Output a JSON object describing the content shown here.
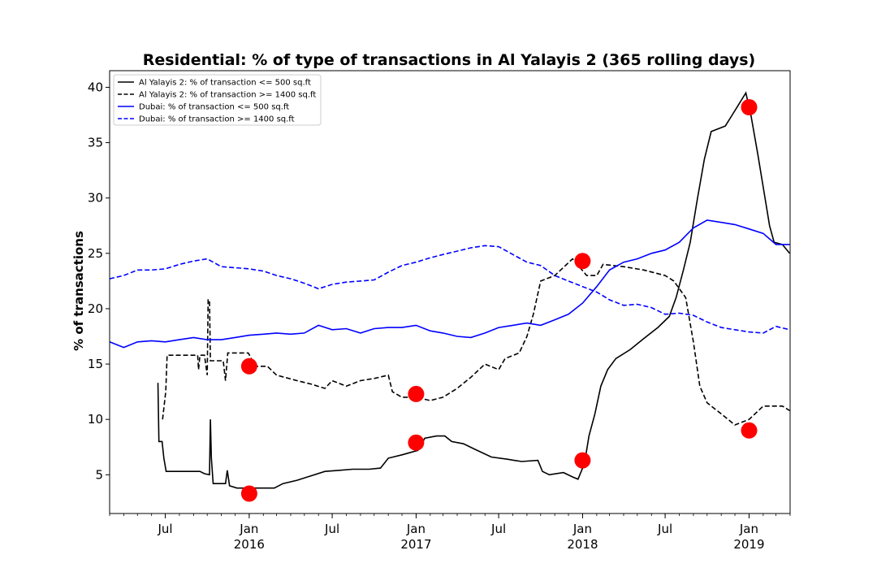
{
  "chart_data": {
    "type": "line",
    "title": "Residential: % of type of transactions in Al Yalayis 2 (365 rolling days)",
    "ylabel": "% of transactions",
    "xlabel": "",
    "xlim": [
      "2015-03-01",
      "2019-04-01"
    ],
    "ylim": [
      1.5,
      41.5
    ],
    "yticks": [
      5,
      10,
      15,
      20,
      25,
      30,
      35,
      40
    ],
    "xticks": [
      {
        "date": "2015-07-01",
        "label": "Jul",
        "year": ""
      },
      {
        "date": "2016-01-01",
        "label": "Jan",
        "year": "2016"
      },
      {
        "date": "2016-07-01",
        "label": "Jul",
        "year": ""
      },
      {
        "date": "2017-01-01",
        "label": "Jan",
        "year": "2017"
      },
      {
        "date": "2017-07-01",
        "label": "Jul",
        "year": ""
      },
      {
        "date": "2018-01-01",
        "label": "Jan",
        "year": "2018"
      },
      {
        "date": "2018-07-01",
        "label": "Jul",
        "year": ""
      },
      {
        "date": "2019-01-01",
        "label": "Jan",
        "year": "2019"
      }
    ],
    "grid": false,
    "legend_position": "top-left",
    "series": [
      {
        "name": "Al Yalayis 2: % of transaction <= 500 sq.ft",
        "color": "#000000",
        "style": "solid",
        "points": [
          [
            "2015-06-15",
            13.3
          ],
          [
            "2015-06-17",
            8.0
          ],
          [
            "2015-06-24",
            8.0
          ],
          [
            "2015-06-28",
            6.5
          ],
          [
            "2015-07-03",
            5.3
          ],
          [
            "2015-09-15",
            5.3
          ],
          [
            "2015-09-25",
            5.1
          ],
          [
            "2015-10-06",
            5.0
          ],
          [
            "2015-10-08",
            10.0
          ],
          [
            "2015-10-10",
            6.5
          ],
          [
            "2015-10-14",
            4.2
          ],
          [
            "2015-11-10",
            4.2
          ],
          [
            "2015-11-14",
            5.4
          ],
          [
            "2015-11-19",
            4.0
          ],
          [
            "2015-12-05",
            3.8
          ],
          [
            "2016-02-25",
            3.8
          ],
          [
            "2016-03-15",
            4.2
          ],
          [
            "2016-04-15",
            4.5
          ],
          [
            "2016-05-15",
            4.9
          ],
          [
            "2016-06-15",
            5.3
          ],
          [
            "2016-07-15",
            5.4
          ],
          [
            "2016-08-15",
            5.5
          ],
          [
            "2016-09-20",
            5.5
          ],
          [
            "2016-10-15",
            5.6
          ],
          [
            "2016-11-01",
            6.5
          ],
          [
            "2016-12-01",
            6.8
          ],
          [
            "2017-01-05",
            7.2
          ],
          [
            "2017-01-20",
            8.3
          ],
          [
            "2017-02-15",
            8.5
          ],
          [
            "2017-03-05",
            8.5
          ],
          [
            "2017-03-20",
            8.0
          ],
          [
            "2017-04-15",
            7.8
          ],
          [
            "2017-05-10",
            7.3
          ],
          [
            "2017-06-15",
            6.6
          ],
          [
            "2017-07-20",
            6.4
          ],
          [
            "2017-08-20",
            6.2
          ],
          [
            "2017-09-25",
            6.3
          ],
          [
            "2017-10-05",
            5.3
          ],
          [
            "2017-10-20",
            5.0
          ],
          [
            "2017-11-20",
            5.2
          ],
          [
            "2017-12-10",
            4.8
          ],
          [
            "2017-12-22",
            4.6
          ],
          [
            "2018-01-05",
            6.0
          ],
          [
            "2018-01-15",
            8.5
          ],
          [
            "2018-01-28",
            10.5
          ],
          [
            "2018-02-10",
            13.0
          ],
          [
            "2018-02-25",
            14.5
          ],
          [
            "2018-03-15",
            15.5
          ],
          [
            "2018-04-15",
            16.3
          ],
          [
            "2018-05-15",
            17.3
          ],
          [
            "2018-06-15",
            18.3
          ],
          [
            "2018-07-10",
            19.3
          ],
          [
            "2018-07-25",
            21.0
          ],
          [
            "2018-08-10",
            23.5
          ],
          [
            "2018-08-25",
            26.0
          ],
          [
            "2018-09-10",
            30.0
          ],
          [
            "2018-09-25",
            33.5
          ],
          [
            "2018-10-10",
            36.0
          ],
          [
            "2018-11-10",
            36.5
          ],
          [
            "2018-11-25",
            37.5
          ],
          [
            "2018-12-10",
            38.5
          ],
          [
            "2018-12-25",
            39.5
          ],
          [
            "2019-01-05",
            37.5
          ],
          [
            "2019-01-20",
            34.0
          ],
          [
            "2019-02-05",
            30.0
          ],
          [
            "2019-02-15",
            27.5
          ],
          [
            "2019-02-25",
            26.0
          ],
          [
            "2019-03-15",
            25.8
          ],
          [
            "2019-03-31",
            25.0
          ]
        ]
      },
      {
        "name": "Al Yalayis 2: % of transaction >= 1400 sq.ft",
        "color": "#000000",
        "style": "dashed",
        "points": [
          [
            "2015-06-25",
            10.0
          ],
          [
            "2015-07-02",
            12.5
          ],
          [
            "2015-07-05",
            15.8
          ],
          [
            "2015-09-10",
            15.8
          ],
          [
            "2015-09-12",
            14.5
          ],
          [
            "2015-09-15",
            15.8
          ],
          [
            "2015-09-25",
            15.8
          ],
          [
            "2015-10-01",
            14.0
          ],
          [
            "2015-10-03",
            20.8
          ],
          [
            "2015-10-06",
            20.8
          ],
          [
            "2015-10-08",
            15.3
          ],
          [
            "2015-11-05",
            15.3
          ],
          [
            "2015-11-10",
            13.5
          ],
          [
            "2015-11-15",
            16.0
          ],
          [
            "2015-12-30",
            16.0
          ],
          [
            "2016-01-15",
            14.8
          ],
          [
            "2016-02-10",
            14.8
          ],
          [
            "2016-03-01",
            14.0
          ],
          [
            "2016-04-15",
            13.5
          ],
          [
            "2016-05-15",
            13.2
          ],
          [
            "2016-06-15",
            12.8
          ],
          [
            "2016-07-01",
            13.5
          ],
          [
            "2016-08-01",
            13.0
          ],
          [
            "2016-09-01",
            13.5
          ],
          [
            "2016-10-01",
            13.7
          ],
          [
            "2016-11-01",
            14.0
          ],
          [
            "2016-11-10",
            12.5
          ],
          [
            "2016-12-01",
            12.0
          ],
          [
            "2017-01-01",
            12.0
          ],
          [
            "2017-02-01",
            11.7
          ],
          [
            "2017-03-01",
            12.0
          ],
          [
            "2017-04-01",
            12.8
          ],
          [
            "2017-05-01",
            13.8
          ],
          [
            "2017-06-01",
            15.0
          ],
          [
            "2017-07-01",
            14.5
          ],
          [
            "2017-07-15",
            15.5
          ],
          [
            "2017-08-15",
            16.0
          ],
          [
            "2017-09-01",
            17.5
          ],
          [
            "2017-09-15",
            19.5
          ],
          [
            "2017-10-01",
            22.5
          ],
          [
            "2017-11-01",
            23.0
          ],
          [
            "2017-12-10",
            24.5
          ],
          [
            "2018-01-10",
            23.0
          ],
          [
            "2018-02-01",
            23.0
          ],
          [
            "2018-02-15",
            24.0
          ],
          [
            "2018-04-01",
            23.8
          ],
          [
            "2018-05-15",
            23.5
          ],
          [
            "2018-07-01",
            23.0
          ],
          [
            "2018-07-20",
            22.5
          ],
          [
            "2018-08-15",
            21.0
          ],
          [
            "2018-09-01",
            17.0
          ],
          [
            "2018-09-15",
            13.0
          ],
          [
            "2018-10-01",
            11.5
          ],
          [
            "2018-11-01",
            10.5
          ],
          [
            "2018-12-01",
            9.5
          ],
          [
            "2019-01-01",
            10.0
          ],
          [
            "2019-02-01",
            11.2
          ],
          [
            "2019-03-15",
            11.2
          ],
          [
            "2019-03-31",
            10.8
          ]
        ]
      },
      {
        "name": "Dubai: % of transaction <= 500 sq.ft",
        "color": "#0000ff",
        "style": "solid",
        "points": [
          [
            "2015-03-01",
            17.0
          ],
          [
            "2015-04-01",
            16.5
          ],
          [
            "2015-05-01",
            17.0
          ],
          [
            "2015-06-01",
            17.1
          ],
          [
            "2015-07-01",
            17.0
          ],
          [
            "2015-08-01",
            17.2
          ],
          [
            "2015-09-01",
            17.4
          ],
          [
            "2015-10-01",
            17.2
          ],
          [
            "2015-11-01",
            17.2
          ],
          [
            "2015-12-01",
            17.4
          ],
          [
            "2016-01-01",
            17.6
          ],
          [
            "2016-02-01",
            17.7
          ],
          [
            "2016-03-01",
            17.8
          ],
          [
            "2016-04-01",
            17.7
          ],
          [
            "2016-05-01",
            17.8
          ],
          [
            "2016-06-01",
            18.5
          ],
          [
            "2016-07-01",
            18.1
          ],
          [
            "2016-08-01",
            18.2
          ],
          [
            "2016-09-01",
            17.8
          ],
          [
            "2016-10-01",
            18.2
          ],
          [
            "2016-11-01",
            18.3
          ],
          [
            "2016-12-01",
            18.3
          ],
          [
            "2017-01-01",
            18.5
          ],
          [
            "2017-02-01",
            18.0
          ],
          [
            "2017-03-01",
            17.8
          ],
          [
            "2017-04-01",
            17.5
          ],
          [
            "2017-05-01",
            17.4
          ],
          [
            "2017-06-01",
            17.8
          ],
          [
            "2017-07-01",
            18.3
          ],
          [
            "2017-08-01",
            18.5
          ],
          [
            "2017-09-01",
            18.7
          ],
          [
            "2017-10-01",
            18.5
          ],
          [
            "2017-11-01",
            19.0
          ],
          [
            "2017-12-01",
            19.5
          ],
          [
            "2018-01-01",
            20.5
          ],
          [
            "2018-02-01",
            22.0
          ],
          [
            "2018-03-01",
            23.5
          ],
          [
            "2018-04-01",
            24.2
          ],
          [
            "2018-05-01",
            24.5
          ],
          [
            "2018-06-01",
            25.0
          ],
          [
            "2018-07-01",
            25.3
          ],
          [
            "2018-08-01",
            26.0
          ],
          [
            "2018-09-01",
            27.3
          ],
          [
            "2018-10-01",
            28.0
          ],
          [
            "2018-11-01",
            27.8
          ],
          [
            "2018-12-01",
            27.6
          ],
          [
            "2019-01-01",
            27.2
          ],
          [
            "2019-02-01",
            26.8
          ],
          [
            "2019-03-01",
            25.8
          ],
          [
            "2019-03-31",
            25.8
          ]
        ]
      },
      {
        "name": "Dubai: % of transaction >= 1400 sq.ft",
        "color": "#0000ff",
        "style": "dashed",
        "points": [
          [
            "2015-03-01",
            22.7
          ],
          [
            "2015-04-01",
            23.0
          ],
          [
            "2015-05-01",
            23.5
          ],
          [
            "2015-06-01",
            23.5
          ],
          [
            "2015-07-01",
            23.6
          ],
          [
            "2015-08-01",
            24.0
          ],
          [
            "2015-09-01",
            24.3
          ],
          [
            "2015-10-01",
            24.5
          ],
          [
            "2015-11-01",
            23.8
          ],
          [
            "2015-12-01",
            23.7
          ],
          [
            "2016-01-01",
            23.6
          ],
          [
            "2016-02-01",
            23.4
          ],
          [
            "2016-03-01",
            23.0
          ],
          [
            "2016-04-01",
            22.7
          ],
          [
            "2016-05-01",
            22.3
          ],
          [
            "2016-06-01",
            21.8
          ],
          [
            "2016-07-01",
            22.2
          ],
          [
            "2016-08-01",
            22.4
          ],
          [
            "2016-09-01",
            22.5
          ],
          [
            "2016-10-01",
            22.6
          ],
          [
            "2016-11-01",
            23.3
          ],
          [
            "2016-12-01",
            23.9
          ],
          [
            "2017-01-01",
            24.2
          ],
          [
            "2017-02-01",
            24.6
          ],
          [
            "2017-03-01",
            24.9
          ],
          [
            "2017-04-01",
            25.2
          ],
          [
            "2017-05-01",
            25.5
          ],
          [
            "2017-06-01",
            25.7
          ],
          [
            "2017-07-01",
            25.6
          ],
          [
            "2017-08-01",
            24.9
          ],
          [
            "2017-09-01",
            24.2
          ],
          [
            "2017-10-01",
            23.9
          ],
          [
            "2017-11-01",
            23.0
          ],
          [
            "2017-12-01",
            22.5
          ],
          [
            "2018-01-01",
            22.0
          ],
          [
            "2018-02-01",
            21.5
          ],
          [
            "2018-03-01",
            20.8
          ],
          [
            "2018-04-01",
            20.3
          ],
          [
            "2018-05-01",
            20.4
          ],
          [
            "2018-06-01",
            20.1
          ],
          [
            "2018-07-01",
            19.5
          ],
          [
            "2018-08-01",
            19.6
          ],
          [
            "2018-09-01",
            19.4
          ],
          [
            "2018-10-01",
            18.8
          ],
          [
            "2018-11-01",
            18.3
          ],
          [
            "2018-12-01",
            18.1
          ],
          [
            "2019-01-01",
            17.9
          ],
          [
            "2019-02-01",
            17.8
          ],
          [
            "2019-03-01",
            18.4
          ],
          [
            "2019-03-31",
            18.1
          ]
        ]
      }
    ],
    "markers": [
      {
        "date": "2016-01-01",
        "value": 14.8
      },
      {
        "date": "2016-01-01",
        "value": 3.3
      },
      {
        "date": "2017-01-01",
        "value": 12.3
      },
      {
        "date": "2017-01-01",
        "value": 7.9
      },
      {
        "date": "2018-01-01",
        "value": 24.3
      },
      {
        "date": "2018-01-01",
        "value": 6.3
      },
      {
        "date": "2019-01-01",
        "value": 38.2
      },
      {
        "date": "2019-01-01",
        "value": 9.0
      }
    ],
    "marker_color": "#ff0000"
  }
}
